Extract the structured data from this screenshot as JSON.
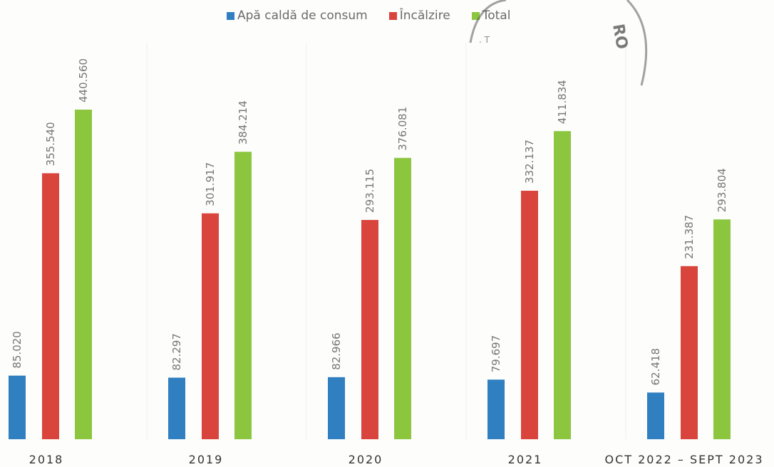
{
  "chart_data": {
    "type": "bar",
    "categories": [
      "2018",
      "2019",
      "2020",
      "2021",
      "OCT 2022 – SEPT 2023"
    ],
    "series": [
      {
        "name": "Apă caldă de consum",
        "color": "#2f7fc1",
        "values": [
          85.02,
          82.297,
          82.966,
          79.697,
          62.418
        ],
        "labels": [
          "85.020",
          "82.297",
          "82.966",
          "79.697",
          "62.418"
        ]
      },
      {
        "name": "Încălzire",
        "color": "#d9443c",
        "values": [
          355.54,
          301.917,
          293.115,
          332.137,
          231.387
        ],
        "labels": [
          "355.540",
          "301.917",
          "293.115",
          "332.137",
          "231.387"
        ]
      },
      {
        "name": "Total",
        "color": "#8cc63f",
        "values": [
          440.56,
          384.214,
          376.081,
          411.834,
          293.804
        ],
        "labels": [
          "440.560",
          "384.214",
          "376.081",
          "411.834",
          "293.804"
        ]
      }
    ],
    "ylim": [
      0,
      440.56
    ],
    "legend": "top-center",
    "grid": false,
    "title": "",
    "xlabel": "",
    "ylabel": ""
  },
  "stamp_text": "RO"
}
